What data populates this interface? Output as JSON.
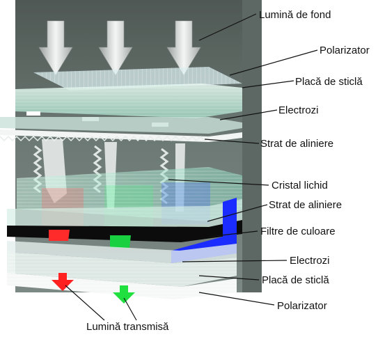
{
  "labels": {
    "backlight": "Lumină de fond",
    "polarizer_top": "Polarizator",
    "glass_top": "Placă de sticlă",
    "electrodes_top": "Electrozi",
    "alignment_top": "Strat de aliniere",
    "liquid_crystal": "Cristal lichid",
    "alignment_bottom": "Strat de aliniere",
    "color_filters": "Filtre de culoare",
    "electrodes_bottom": "Electrozi",
    "glass_bottom": "Placă de sticlă",
    "polarizer_bottom": "Polarizator",
    "transmitted_light": "Lumină transmisă"
  },
  "colors": {
    "panel_bg": "#6e7a76",
    "red_light": "#ff2020",
    "green_light": "#20e040",
    "blue_filter": "#1a2cff",
    "glass": "#bfe6d8",
    "leader": "#111111"
  }
}
